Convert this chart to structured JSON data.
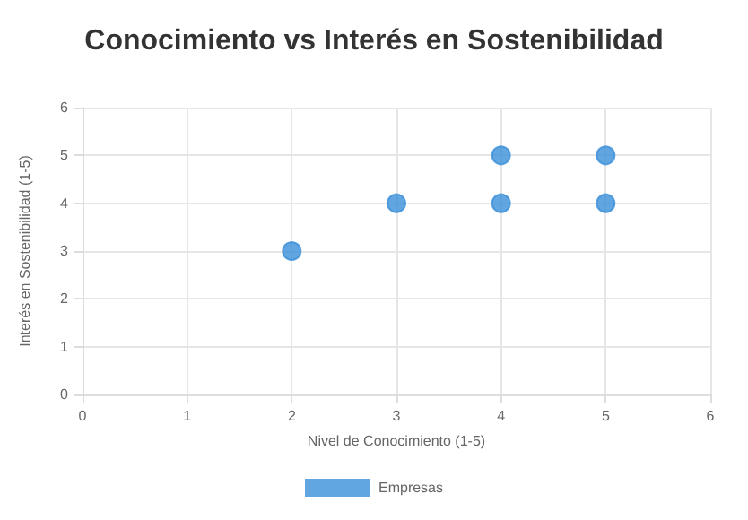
{
  "chart_data": {
    "type": "scatter",
    "title": "Conocimiento vs Interés en Sostenibilidad",
    "xlabel": "Nivel de Conocimiento (1-5)",
    "ylabel": "Interés en Sostenibilidad (1-5)",
    "x": [
      2,
      3,
      4,
      4,
      5,
      5
    ],
    "series": [
      {
        "name": "Empresas",
        "color": "#3a8fd9",
        "values": [
          3,
          4,
          5,
          4,
          5,
          4
        ]
      }
    ],
    "xlim": [
      0,
      6
    ],
    "xticks": [
      0,
      1,
      2,
      3,
      4,
      5,
      6
    ],
    "ylim": [
      0,
      6
    ],
    "yticks": [
      0,
      1,
      2,
      3,
      4,
      5,
      6
    ],
    "grid": true,
    "legend": "bottom",
    "marker": "circle"
  }
}
